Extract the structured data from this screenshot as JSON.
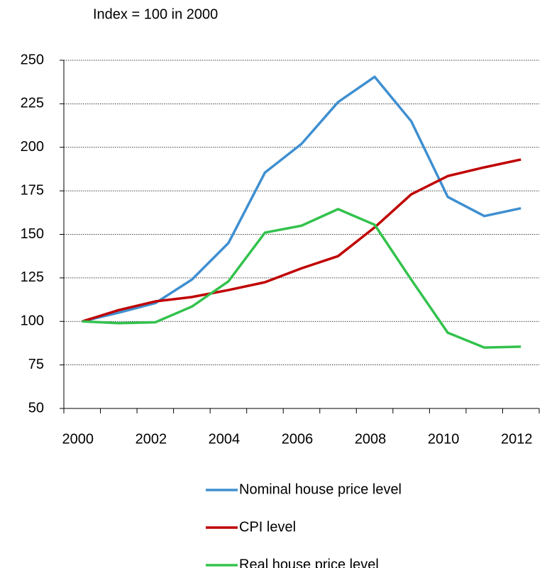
{
  "chart_data": {
    "type": "line",
    "subtitle": "Index = 100 in 2000",
    "categories": [
      "2000",
      null,
      "2002",
      null,
      "2004",
      null,
      "2006",
      null,
      "2008",
      null,
      "2010",
      null,
      "2012"
    ],
    "series": [
      {
        "name": "Nominal house price level",
        "color": "#3f8fd0",
        "values": [
          100,
          105,
          110.5,
          124,
          145,
          185.5,
          202,
          226,
          240.5,
          215,
          171.5,
          160.5,
          165
        ]
      },
      {
        "name": "CPI level",
        "color": "#c00000",
        "values": [
          100,
          106.5,
          111.5,
          114,
          118,
          122.5,
          130.5,
          137.5,
          154,
          173,
          183.5,
          188.5,
          193
        ]
      },
      {
        "name": "Real house price level",
        "color": "#33c24d",
        "values": [
          100,
          99,
          99.5,
          108.5,
          123,
          151,
          155,
          164.5,
          155.5,
          124,
          93.5,
          85,
          85.5
        ]
      }
    ],
    "ylim": [
      50,
      250
    ],
    "yticks": [
      50,
      75,
      100,
      125,
      150,
      175,
      200,
      225,
      250
    ],
    "grid": true
  }
}
